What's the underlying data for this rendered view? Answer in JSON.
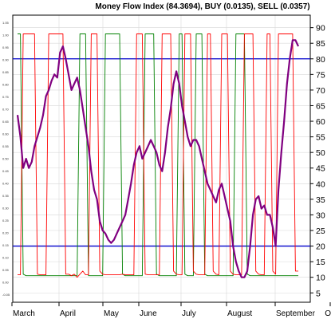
{
  "chart_data": {
    "type": "line",
    "title": "Money Flow Index (84.3694), BUY (0.0135), SELL (0.0357)",
    "right_axis": {
      "ylim": [
        2,
        94
      ],
      "ticks": [
        5,
        10,
        15,
        20,
        25,
        30,
        35,
        40,
        45,
        50,
        55,
        60,
        65,
        70,
        75,
        80,
        85,
        90
      ]
    },
    "left_axis": {
      "ylim": [
        -0.08,
        1.08
      ],
      "ticks": [
        "1.05",
        "1.00",
        "0.95",
        "0.90",
        "0.85",
        "0.80",
        "0.75",
        "0.70",
        "0.65",
        "0.60",
        "0.55",
        "0.50",
        "0.45",
        "0.40",
        "0.35",
        "0.30",
        "0.25",
        "0.20",
        "0.15",
        "0.10",
        "0.05",
        "0.00",
        "-0.05"
      ]
    },
    "x_labels": [
      "March",
      "April",
      "May",
      "June",
      "July",
      "August",
      "September",
      "O"
    ],
    "reference_lines": [
      80,
      20
    ],
    "colors": {
      "mfi": "#800080",
      "buy": "#ff0000",
      "sell": "#008000",
      "reference": "#0000cc"
    },
    "series": [
      {
        "key": "mfi",
        "values": [
          62,
          55,
          45,
          48,
          45,
          47,
          52,
          55,
          58,
          62,
          68,
          70,
          73,
          75,
          74,
          82,
          84,
          80,
          75,
          70,
          72,
          74,
          70,
          64,
          58,
          52,
          44,
          38,
          35,
          28,
          25,
          24,
          22,
          21,
          22,
          24,
          26,
          28,
          30,
          35,
          40,
          46,
          50,
          52,
          48,
          50,
          52,
          54,
          52,
          50,
          46,
          44,
          50,
          58,
          64,
          72,
          76,
          72,
          65,
          60,
          55,
          52,
          54,
          54,
          52,
          48,
          44,
          40,
          38,
          36,
          34,
          38,
          40,
          36,
          32,
          28,
          20,
          15,
          12,
          10,
          10,
          12,
          20,
          30,
          35,
          36,
          32,
          33,
          30,
          30,
          26,
          20,
          38,
          50,
          60,
          72,
          80,
          86,
          86,
          84
        ]
      },
      {
        "key": "buy",
        "values": [
          10.8,
          10.8,
          88,
          88,
          88,
          88,
          88,
          11,
          10.8,
          10.8,
          10.8,
          88,
          88,
          88,
          88,
          88,
          88,
          11,
          11,
          10.5,
          11,
          10,
          11,
          12,
          10.8,
          10.8,
          88,
          88,
          88,
          12,
          11,
          10.8,
          10.8,
          10.8,
          10.8,
          10.8,
          10.8,
          11,
          10.8,
          10.8,
          10.8,
          10.8,
          88,
          88,
          88,
          11,
          10.8,
          10.8,
          10.8,
          10.8,
          10.8,
          88,
          88,
          88,
          88,
          12,
          11,
          10.8,
          10.8,
          88,
          88,
          88,
          12,
          11,
          10.8,
          10.8,
          10.8,
          88,
          88,
          12,
          11,
          10.8,
          88,
          88,
          88,
          12,
          11,
          10.8,
          10.8,
          10.8,
          88,
          88,
          88,
          88,
          12,
          11,
          10.8,
          10.8,
          88,
          88,
          12,
          11,
          88,
          88,
          88,
          88,
          88,
          88,
          12,
          12
        ]
      },
      {
        "key": "sell",
        "values": [
          88,
          88,
          11,
          10.5,
          10.5,
          10.5,
          10.5,
          10.5,
          10.5,
          10.5,
          10.5,
          10.5,
          10.5,
          10.5,
          10.5,
          10.5,
          10.5,
          10.5,
          10.5,
          10.5,
          10.5,
          10.5,
          88,
          88,
          88,
          10.5,
          10.5,
          10.5,
          10.5,
          10.5,
          10.5,
          88,
          88,
          88,
          88,
          88,
          88,
          11,
          10.5,
          10.5,
          10.5,
          10.5,
          10.5,
          10.5,
          10.5,
          88,
          88,
          88,
          88,
          11,
          10.5,
          10.5,
          10.5,
          10.5,
          10.5,
          10.5,
          10.5,
          88,
          88,
          11,
          10.5,
          10.5,
          10.5,
          88,
          88,
          88,
          11,
          10.5,
          10.5,
          10.5,
          10.5,
          10.5,
          10.5,
          10.5,
          10.5,
          10.5,
          10.5,
          88,
          88,
          88,
          88,
          11,
          10.5,
          10.5,
          10.5,
          10.5,
          10.5,
          10.5,
          10.5,
          10.5,
          10.5,
          10.5,
          10.5,
          10.5,
          10.5,
          10.5,
          10.5,
          10.5,
          10.5,
          10.5
        ]
      }
    ],
    "grid": true
  }
}
